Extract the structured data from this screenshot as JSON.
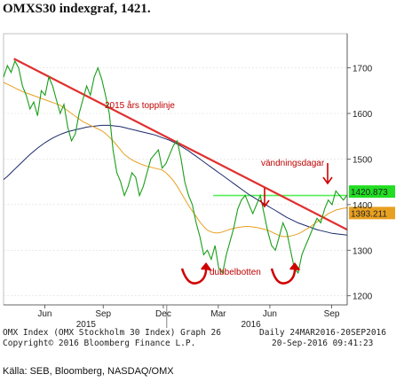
{
  "header": {
    "title": "OMXS30 indexgraf, 1421."
  },
  "chart_data": {
    "type": "line",
    "y_ticks": [
      1200,
      1300,
      1400,
      1500,
      1600,
      1700
    ],
    "ylim": [
      1180,
      1775
    ],
    "x_month_labels": [
      "Jun",
      "Sep",
      "Dec",
      "Mar",
      "Jun",
      "Sep"
    ],
    "x_year_labels": [
      "2015",
      "2016"
    ],
    "price_labels": [
      {
        "text": "1420.873",
        "value": 1420.873,
        "color": "#22dd22"
      },
      {
        "text": "1393.211",
        "value": 1393.211,
        "color": "#e8a020"
      }
    ],
    "annotations": {
      "topline": "2015 års topplinje",
      "reversal": "vändningsdagar",
      "double_bottom": "dubbelbotten"
    },
    "series": [
      {
        "name": "",
        "color": "#1a9e1a",
        "values": [
          1680,
          1705,
          1690,
          1715,
          1700,
          1660,
          1640,
          1610,
          1625,
          1595,
          1650,
          1640,
          1680,
          1660,
          1630,
          1600,
          1620,
          1570,
          1540,
          1555,
          1600,
          1630,
          1660,
          1640,
          1680,
          1700,
          1675,
          1640,
          1600,
          1520,
          1470,
          1450,
          1420,
          1440,
          1470,
          1460,
          1420,
          1440,
          1470,
          1500,
          1510,
          1520,
          1480,
          1490,
          1510,
          1530,
          1540,
          1500,
          1450,
          1420,
          1400,
          1360,
          1330,
          1290,
          1300,
          1280,
          1310,
          1260,
          1250,
          1290,
          1320,
          1350,
          1390,
          1410,
          1420,
          1400,
          1380,
          1400,
          1420,
          1380,
          1340,
          1310,
          1300,
          1330,
          1360,
          1340,
          1300,
          1260,
          1250,
          1290,
          1310,
          1330,
          1350,
          1370,
          1360,
          1390,
          1410,
          1400,
          1430,
          1420,
          1410,
          1421
        ]
      },
      {
        "name": "",
        "color": "#e8a020",
        "values": [
          1668,
          1664,
          1660,
          1656,
          1652,
          1648,
          1645,
          1642,
          1639,
          1636,
          1633,
          1630,
          1627,
          1624,
          1621,
          1618,
          1612,
          1606,
          1600,
          1594,
          1588,
          1582,
          1578,
          1574,
          1570,
          1566,
          1562,
          1556,
          1548,
          1540,
          1530,
          1520,
          1510,
          1504,
          1498,
          1494,
          1490,
          1487,
          1484,
          1482,
          1480,
          1478,
          1476,
          1470,
          1462,
          1452,
          1440,
          1426,
          1412,
          1398,
          1386,
          1374,
          1362,
          1352,
          1344,
          1340,
          1338,
          1338,
          1340,
          1343,
          1346,
          1348,
          1350,
          1351,
          1352,
          1352,
          1351,
          1350,
          1348,
          1346,
          1344,
          1340,
          1336,
          1332,
          1330,
          1330,
          1331,
          1333,
          1336,
          1340,
          1345,
          1350,
          1356,
          1362,
          1368,
          1374,
          1380,
          1384,
          1388,
          1390,
          1392,
          1393
        ]
      },
      {
        "name": "",
        "color": "#1a2a6b",
        "values": [
          1455,
          1462,
          1470,
          1478,
          1486,
          1494,
          1502,
          1510,
          1517,
          1524,
          1530,
          1536,
          1541,
          1546,
          1550,
          1554,
          1557,
          1560,
          1562,
          1564,
          1566,
          1568,
          1570,
          1571,
          1572,
          1573,
          1574,
          1574,
          1574,
          1573,
          1572,
          1571,
          1569,
          1567,
          1565,
          1563,
          1561,
          1559,
          1557,
          1555,
          1553,
          1550,
          1547,
          1544,
          1541,
          1537,
          1533,
          1528,
          1523,
          1518,
          1512,
          1506,
          1500,
          1494,
          1488,
          1482,
          1476,
          1470,
          1464,
          1458,
          1452,
          1446,
          1440,
          1434,
          1428,
          1422,
          1417,
          1412,
          1407,
          1402,
          1397,
          1392,
          1387,
          1382,
          1377,
          1372,
          1368,
          1364,
          1360,
          1357,
          1354,
          1351,
          1348,
          1345,
          1343,
          1341,
          1339,
          1337,
          1336,
          1335,
          1334,
          1333
        ]
      }
    ],
    "trendline": {
      "color": "#e03030",
      "from": 1720,
      "to": 1345
    },
    "horizontal_line": {
      "value": 1420,
      "color": "#55ee55"
    }
  },
  "footer": {
    "line1_left": "OMX Index (OMX Stockholm 30 Index) Graph 26",
    "line1_right": "Daily 24MAR2016-20SEP2016",
    "line2_left": "Copyright© 2016 Bloomberg Finance L.P.",
    "line2_right": "20-Sep-2016 09:41:23",
    "source": "Källa: SEB, Bloomberg, NASDAQ/OMX"
  }
}
